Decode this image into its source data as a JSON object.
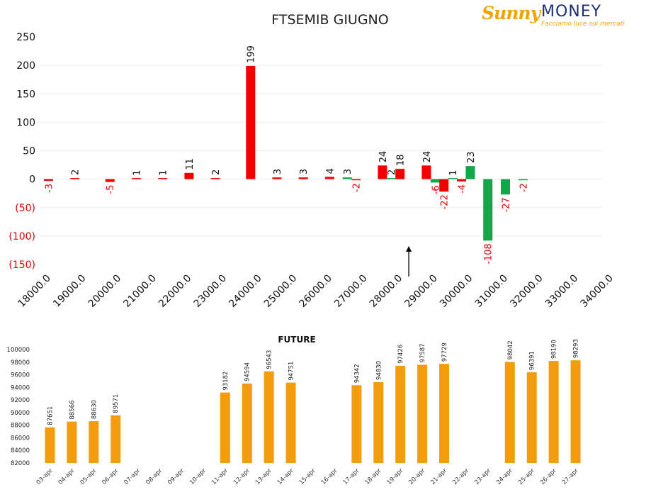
{
  "logo": {
    "brand_left": "Sunny",
    "brand_right": "MONEY",
    "tagline": "Facciamo luce sui mercati"
  },
  "chart_data": [
    {
      "type": "bar",
      "title": "FTSEMIB GIUGNO",
      "x_label_values": [
        "18000.0",
        "19000.0",
        "20000.0",
        "21000.0",
        "22000.0",
        "23000.0",
        "24000.0",
        "25000.0",
        "26000.0",
        "27000.0",
        "28000.0",
        "29000.0",
        "30000.0",
        "31000.0",
        "32000.0",
        "33000.0",
        "34000.0"
      ],
      "ytick_labels": [
        "250",
        "200",
        "150",
        "100",
        "50",
        "0",
        "(50)",
        "(100)",
        "(150)"
      ],
      "ylim": [
        -150,
        250
      ],
      "grid": true,
      "legend": "none",
      "colors": {
        "red": "#f20000",
        "green": "#12a84a",
        "negative_label": "#e00000"
      },
      "series": [
        {
          "points": [
            {
              "strike": 18250,
              "value": -3,
              "color": "red"
            },
            {
              "strike": 19000,
              "value": 2,
              "color": "red"
            },
            {
              "strike": 20000,
              "value": -5,
              "color": "red"
            },
            {
              "strike": 20750,
              "value": 1,
              "color": "red"
            },
            {
              "strike": 21500,
              "value": 1,
              "color": "red"
            },
            {
              "strike": 22250,
              "value": 11,
              "color": "red"
            },
            {
              "strike": 23000,
              "value": 2,
              "color": "red"
            },
            {
              "strike": 24000,
              "value": 199,
              "color": "red"
            },
            {
              "strike": 24750,
              "value": 3,
              "color": "red"
            },
            {
              "strike": 25500,
              "value": 3,
              "color": "red"
            },
            {
              "strike": 26250,
              "value": 4,
              "color": "red"
            },
            {
              "strike": 26750,
              "value": 3,
              "color": "green"
            },
            {
              "strike": 27000,
              "value": -2,
              "color": "red"
            },
            {
              "strike": 27750,
              "value": 24,
              "color": "red"
            },
            {
              "strike": 28000,
              "value": 2,
              "color": "green"
            },
            {
              "strike": 28250,
              "value": 18,
              "color": "red"
            },
            {
              "strike": 29000,
              "value": 24,
              "color": "red"
            },
            {
              "strike": 29250,
              "value": -6,
              "color": "green"
            },
            {
              "strike": 29500,
              "value": -22,
              "color": "red"
            },
            {
              "strike": 29750,
              "value": 1,
              "color": "green"
            },
            {
              "strike": 30000,
              "value": -4,
              "color": "red"
            },
            {
              "strike": 30250,
              "value": 23,
              "color": "green"
            },
            {
              "strike": 30750,
              "value": -108,
              "color": "green"
            },
            {
              "strike": 31250,
              "value": -27,
              "color": "green"
            },
            {
              "strike": 31750,
              "value": -2,
              "color": "green"
            }
          ]
        }
      ],
      "annotations": [
        {
          "type": "arrow-up",
          "strike": 28500
        }
      ]
    },
    {
      "type": "bar",
      "title": "FUTURE",
      "categories": [
        "03-apr",
        "04-apr",
        "05-apr",
        "06-apr",
        "07-apr",
        "08-apr",
        "09-apr",
        "10-apr",
        "11-apr",
        "12-apr",
        "13-apr",
        "14-apr",
        "15-apr",
        "16-apr",
        "17-apr",
        "18-apr",
        "19-apr",
        "20-apr",
        "21-apr",
        "22-apr",
        "23-apr",
        "24-apr",
        "25-apr",
        "26-apr",
        "27-apr"
      ],
      "values": [
        87651,
        88566,
        88630,
        89571,
        null,
        null,
        null,
        null,
        93182,
        94594,
        96543,
        94751,
        null,
        null,
        94342,
        94830,
        97426,
        97587,
        97729,
        null,
        null,
        98042,
        96391,
        98190,
        98293
      ],
      "ytick_labels": [
        "100000",
        "98000",
        "96000",
        "94000",
        "92000",
        "90000",
        "88000",
        "86000",
        "84000",
        "82000"
      ],
      "ylim": [
        82000,
        100000
      ],
      "color": "#f39c0d",
      "grid": false,
      "legend": "none"
    }
  ]
}
